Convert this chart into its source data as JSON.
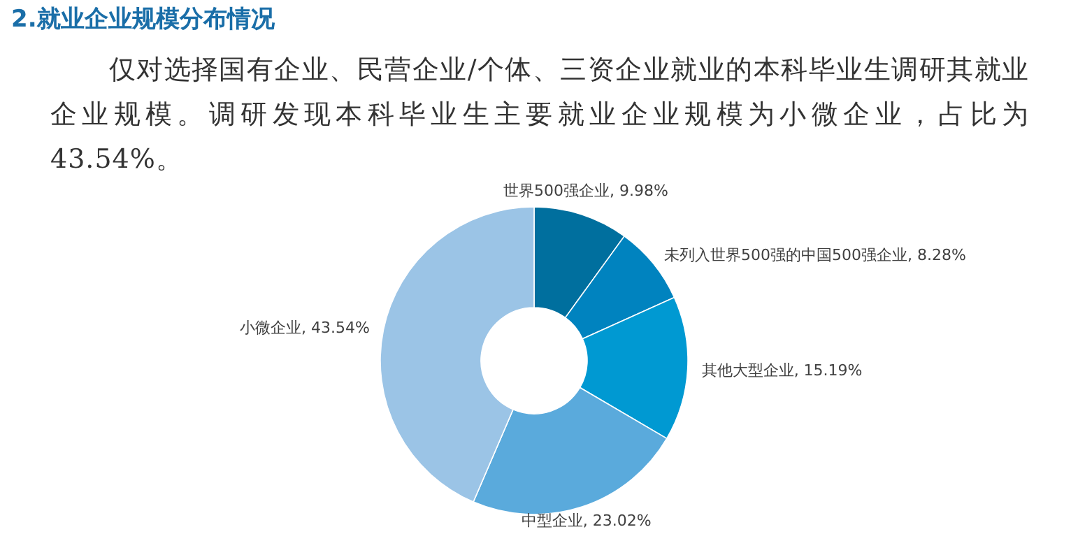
{
  "chart_data": {
    "type": "donut",
    "title": "2.就业企业规模分布情况",
    "subtitle": "仅对选择国有企业、民营企业/个体、三资企业就业的本科毕业生调研其就业企业规模。调研发现本科毕业生主要就业企业规模为小微企业，占比为 43.54%。",
    "categories": [
      "世界500强企业",
      "未列入世界500强的中国500强企业",
      "其他大型企业",
      "中型企业",
      "小微企业"
    ],
    "values": [
      9.98,
      8.28,
      15.19,
      23.02,
      43.54
    ],
    "value_labels": [
      "9.98%",
      "8.28%",
      "15.19%",
      "23.02%",
      "43.54%"
    ],
    "colors": [
      "#006f9e",
      "#0083bf",
      "#0099d2",
      "#5aaadc",
      "#9bc4e6"
    ]
  }
}
